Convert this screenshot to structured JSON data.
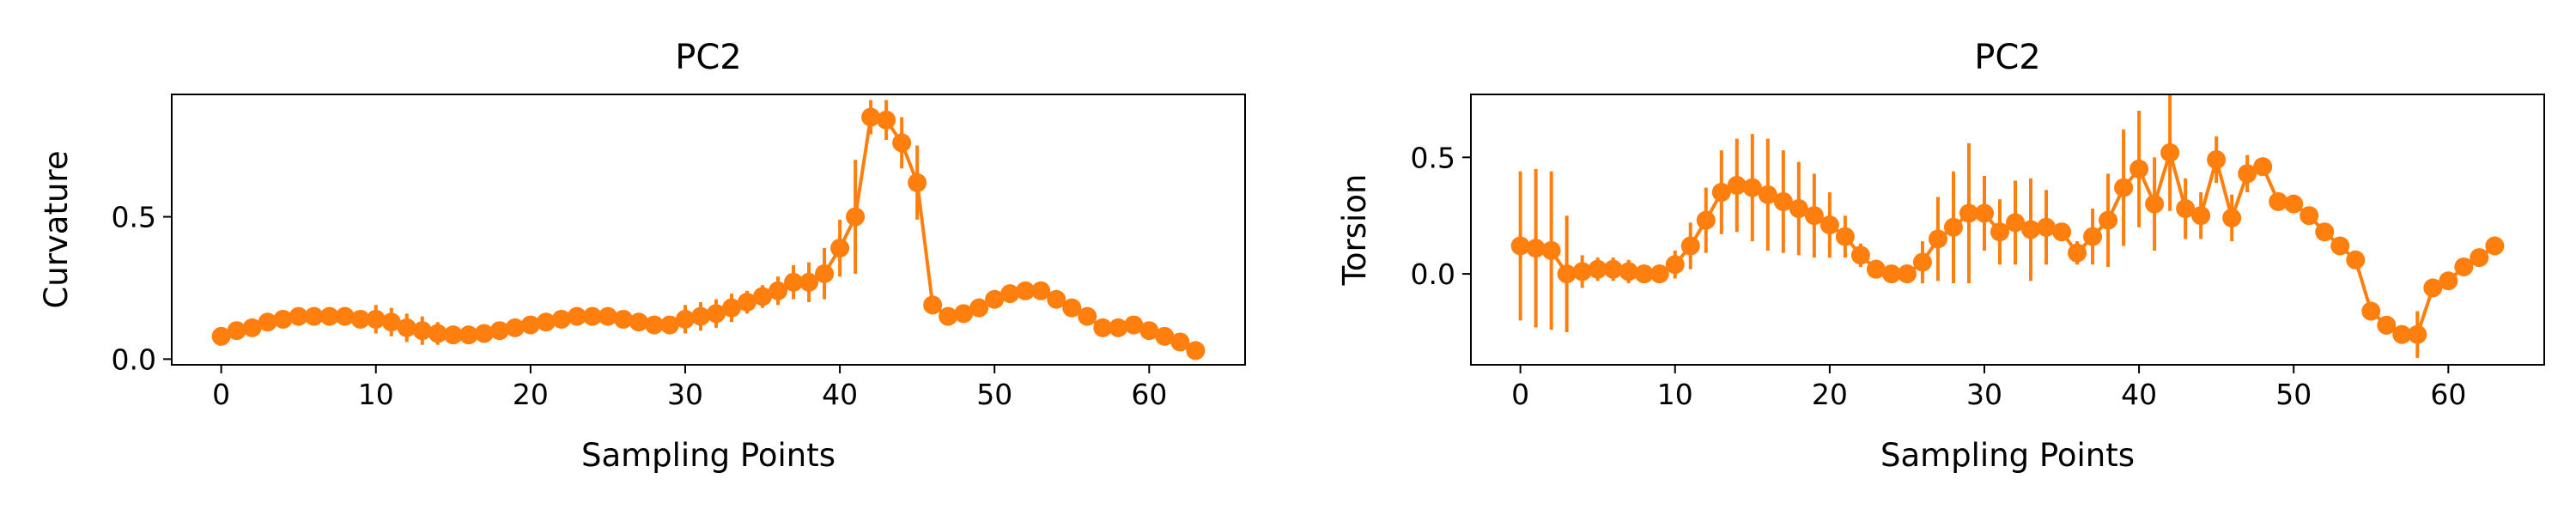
{
  "figure": {
    "series_color": "#ff7f0e"
  },
  "chart_data": [
    {
      "type": "line",
      "title": "PC2",
      "xlabel": "Sampling Points",
      "ylabel": "Curvature",
      "xlim": [
        -3.2,
        66.2
      ],
      "ylim": [
        -0.02,
        0.93
      ],
      "xticks": [
        0,
        10,
        20,
        30,
        40,
        50,
        60
      ],
      "yticks": [
        0.0,
        0.5
      ],
      "ytick_labels": [
        "0.0",
        "0.5"
      ],
      "grid": false,
      "legend": "none",
      "error_bars": true,
      "x": [
        0,
        1,
        2,
        3,
        4,
        5,
        6,
        7,
        8,
        9,
        10,
        11,
        12,
        13,
        14,
        15,
        16,
        17,
        18,
        19,
        20,
        21,
        22,
        23,
        24,
        25,
        26,
        27,
        28,
        29,
        30,
        31,
        32,
        33,
        34,
        35,
        36,
        37,
        38,
        39,
        40,
        41,
        42,
        43,
        44,
        45,
        46,
        47,
        48,
        49,
        50,
        51,
        52,
        53,
        54,
        55,
        56,
        57,
        58,
        59,
        60,
        61,
        62,
        63
      ],
      "y": [
        0.08,
        0.1,
        0.11,
        0.13,
        0.14,
        0.15,
        0.15,
        0.15,
        0.15,
        0.14,
        0.14,
        0.13,
        0.11,
        0.1,
        0.09,
        0.085,
        0.085,
        0.09,
        0.1,
        0.11,
        0.12,
        0.13,
        0.14,
        0.15,
        0.15,
        0.15,
        0.14,
        0.13,
        0.12,
        0.12,
        0.14,
        0.15,
        0.16,
        0.18,
        0.2,
        0.22,
        0.24,
        0.27,
        0.27,
        0.3,
        0.39,
        0.5,
        0.85,
        0.84,
        0.76,
        0.62,
        0.19,
        0.15,
        0.16,
        0.18,
        0.21,
        0.23,
        0.24,
        0.24,
        0.21,
        0.18,
        0.15,
        0.11,
        0.11,
        0.12,
        0.1,
        0.08,
        0.06,
        0.03
      ],
      "error": [
        0.01,
        0.02,
        0.02,
        0.02,
        0.02,
        0.02,
        0.02,
        0.03,
        0.03,
        0.03,
        0.05,
        0.05,
        0.05,
        0.05,
        0.04,
        0.03,
        0.02,
        0.02,
        0.02,
        0.02,
        0.02,
        0.02,
        0.02,
        0.02,
        0.02,
        0.02,
        0.02,
        0.02,
        0.03,
        0.03,
        0.05,
        0.05,
        0.05,
        0.05,
        0.04,
        0.04,
        0.05,
        0.06,
        0.07,
        0.09,
        0.1,
        0.2,
        0.06,
        0.07,
        0.09,
        0.13,
        0.02,
        0.02,
        0.02,
        0.02,
        0.02,
        0.02,
        0.02,
        0.02,
        0.02,
        0.02,
        0.02,
        0.02,
        0.02,
        0.02,
        0.02,
        0.02,
        0.02,
        0.01
      ]
    },
    {
      "type": "line",
      "title": "PC2",
      "xlabel": "Sampling Points",
      "ylabel": "Torsion",
      "xlim": [
        -3.2,
        66.2
      ],
      "ylim": [
        -0.39,
        0.77
      ],
      "xticks": [
        0,
        10,
        20,
        30,
        40,
        50,
        60
      ],
      "yticks": [
        0.0,
        0.5
      ],
      "ytick_labels": [
        "0.0",
        "0.5"
      ],
      "grid": false,
      "legend": "none",
      "error_bars": true,
      "x": [
        0,
        1,
        2,
        3,
        4,
        5,
        6,
        7,
        8,
        9,
        10,
        11,
        12,
        13,
        14,
        15,
        16,
        17,
        18,
        19,
        20,
        21,
        22,
        23,
        24,
        25,
        26,
        27,
        28,
        29,
        30,
        31,
        32,
        33,
        34,
        35,
        36,
        37,
        38,
        39,
        40,
        41,
        42,
        43,
        44,
        45,
        46,
        47,
        48,
        49,
        50,
        51,
        52,
        53,
        54,
        55,
        56,
        57,
        58,
        59,
        60,
        61,
        62,
        63
      ],
      "y": [
        0.12,
        0.11,
        0.1,
        0.0,
        0.01,
        0.02,
        0.02,
        0.01,
        0.0,
        0.0,
        0.04,
        0.12,
        0.23,
        0.35,
        0.38,
        0.37,
        0.34,
        0.31,
        0.28,
        0.25,
        0.21,
        0.16,
        0.08,
        0.02,
        0.0,
        0.0,
        0.05,
        0.15,
        0.2,
        0.26,
        0.26,
        0.18,
        0.22,
        0.19,
        0.2,
        0.18,
        0.09,
        0.16,
        0.23,
        0.37,
        0.45,
        0.3,
        0.52,
        0.28,
        0.25,
        0.49,
        0.24,
        0.43,
        0.46,
        0.31,
        0.3,
        0.25,
        0.18,
        0.12,
        0.06,
        -0.16,
        -0.22,
        -0.26,
        -0.26,
        -0.06,
        -0.03,
        0.03,
        0.07,
        0.12
      ],
      "error": [
        0.32,
        0.34,
        0.34,
        0.25,
        0.07,
        0.05,
        0.05,
        0.05,
        0.04,
        0.04,
        0.06,
        0.1,
        0.14,
        0.18,
        0.2,
        0.23,
        0.24,
        0.22,
        0.2,
        0.18,
        0.14,
        0.09,
        0.05,
        0.04,
        0.03,
        0.04,
        0.09,
        0.18,
        0.24,
        0.3,
        0.16,
        0.14,
        0.18,
        0.22,
        0.16,
        0.03,
        0.05,
        0.12,
        0.2,
        0.25,
        0.25,
        0.2,
        0.25,
        0.13,
        0.1,
        0.1,
        0.1,
        0.08,
        0.03,
        0.02,
        0.02,
        0.02,
        0.02,
        0.02,
        0.03,
        0.04,
        0.04,
        0.04,
        0.1,
        0.04,
        0.03,
        0.03,
        0.03,
        0.04
      ]
    }
  ]
}
